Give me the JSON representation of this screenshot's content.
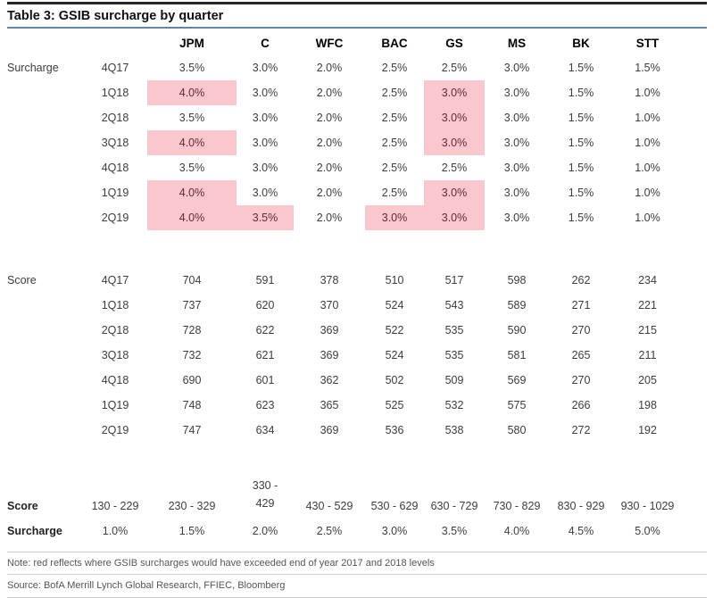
{
  "title": "Table 3: GSIB surcharge by quarter",
  "columns": [
    "JPM",
    "C",
    "WFC",
    "BAC",
    "GS",
    "MS",
    "BK",
    "STT"
  ],
  "surcharge_section": {
    "label": "Surcharge",
    "rows": [
      {
        "quarter": "4Q17",
        "values": [
          "3.5%",
          "3.0%",
          "2.0%",
          "2.5%",
          "2.5%",
          "3.0%",
          "1.5%",
          "1.5%"
        ],
        "highlights": [
          false,
          false,
          false,
          false,
          false,
          false,
          false,
          false
        ]
      },
      {
        "quarter": "1Q18",
        "values": [
          "4.0%",
          "3.0%",
          "2.0%",
          "2.5%",
          "3.0%",
          "3.0%",
          "1.5%",
          "1.0%"
        ],
        "highlights": [
          true,
          false,
          false,
          false,
          true,
          false,
          false,
          false
        ]
      },
      {
        "quarter": "2Q18",
        "values": [
          "3.5%",
          "3.0%",
          "2.0%",
          "2.5%",
          "3.0%",
          "3.0%",
          "1.5%",
          "1.0%"
        ],
        "highlights": [
          false,
          false,
          false,
          false,
          true,
          false,
          false,
          false
        ]
      },
      {
        "quarter": "3Q18",
        "values": [
          "4.0%",
          "3.0%",
          "2.0%",
          "2.5%",
          "3.0%",
          "3.0%",
          "1.5%",
          "1.0%"
        ],
        "highlights": [
          true,
          false,
          false,
          false,
          true,
          false,
          false,
          false
        ]
      },
      {
        "quarter": "4Q18",
        "values": [
          "3.5%",
          "3.0%",
          "2.0%",
          "2.5%",
          "2.5%",
          "3.0%",
          "1.5%",
          "1.0%"
        ],
        "highlights": [
          false,
          false,
          false,
          false,
          false,
          false,
          false,
          false
        ]
      },
      {
        "quarter": "1Q19",
        "values": [
          "4.0%",
          "3.0%",
          "2.0%",
          "2.5%",
          "3.0%",
          "3.0%",
          "1.5%",
          "1.0%"
        ],
        "highlights": [
          true,
          false,
          false,
          false,
          true,
          false,
          false,
          false
        ]
      },
      {
        "quarter": "2Q19",
        "values": [
          "4.0%",
          "3.5%",
          "2.0%",
          "3.0%",
          "3.0%",
          "3.0%",
          "1.5%",
          "1.0%"
        ],
        "highlights": [
          true,
          true,
          false,
          true,
          true,
          false,
          false,
          false
        ]
      }
    ]
  },
  "score_section": {
    "label": "Score",
    "rows": [
      {
        "quarter": "4Q17",
        "values": [
          "704",
          "591",
          "378",
          "510",
          "517",
          "598",
          "262",
          "234"
        ]
      },
      {
        "quarter": "1Q18",
        "values": [
          "737",
          "620",
          "370",
          "524",
          "543",
          "589",
          "271",
          "221"
        ]
      },
      {
        "quarter": "2Q18",
        "values": [
          "728",
          "622",
          "369",
          "522",
          "535",
          "590",
          "270",
          "215"
        ]
      },
      {
        "quarter": "3Q18",
        "values": [
          "732",
          "621",
          "369",
          "524",
          "535",
          "581",
          "265",
          "211"
        ]
      },
      {
        "quarter": "4Q18",
        "values": [
          "690",
          "601",
          "362",
          "502",
          "509",
          "569",
          "270",
          "205"
        ]
      },
      {
        "quarter": "1Q19",
        "values": [
          "748",
          "623",
          "365",
          "525",
          "532",
          "575",
          "266",
          "198"
        ]
      },
      {
        "quarter": "2Q19",
        "values": [
          "747",
          "634",
          "369",
          "536",
          "538",
          "580",
          "272",
          "192"
        ]
      }
    ]
  },
  "legend": {
    "score_label": "Score",
    "score_ranges": [
      "130 - 229",
      "230 - 329",
      "330 - 429",
      "430 - 529",
      "530 - 629",
      "630 - 729",
      "730 - 829",
      "830 - 929",
      "930 - 1029"
    ],
    "surcharge_label": "Surcharge",
    "surcharge_values": [
      "1.0%",
      "1.5%",
      "2.0%",
      "2.5%",
      "3.0%",
      "3.5%",
      "4.0%",
      "4.5%",
      "5.0%"
    ]
  },
  "note": "Note: red reflects where GSIB surcharges would have exceeded end of year 2017 and 2018 levels",
  "source": "Source: BofA Merrill Lynch Global Research, FFIEC, Bloomberg",
  "colors": {
    "highlight_bg": "#f9c7cd",
    "highlight_text": "#632b31",
    "top_rule": "#262631",
    "title_rule": "#5f86a8"
  }
}
